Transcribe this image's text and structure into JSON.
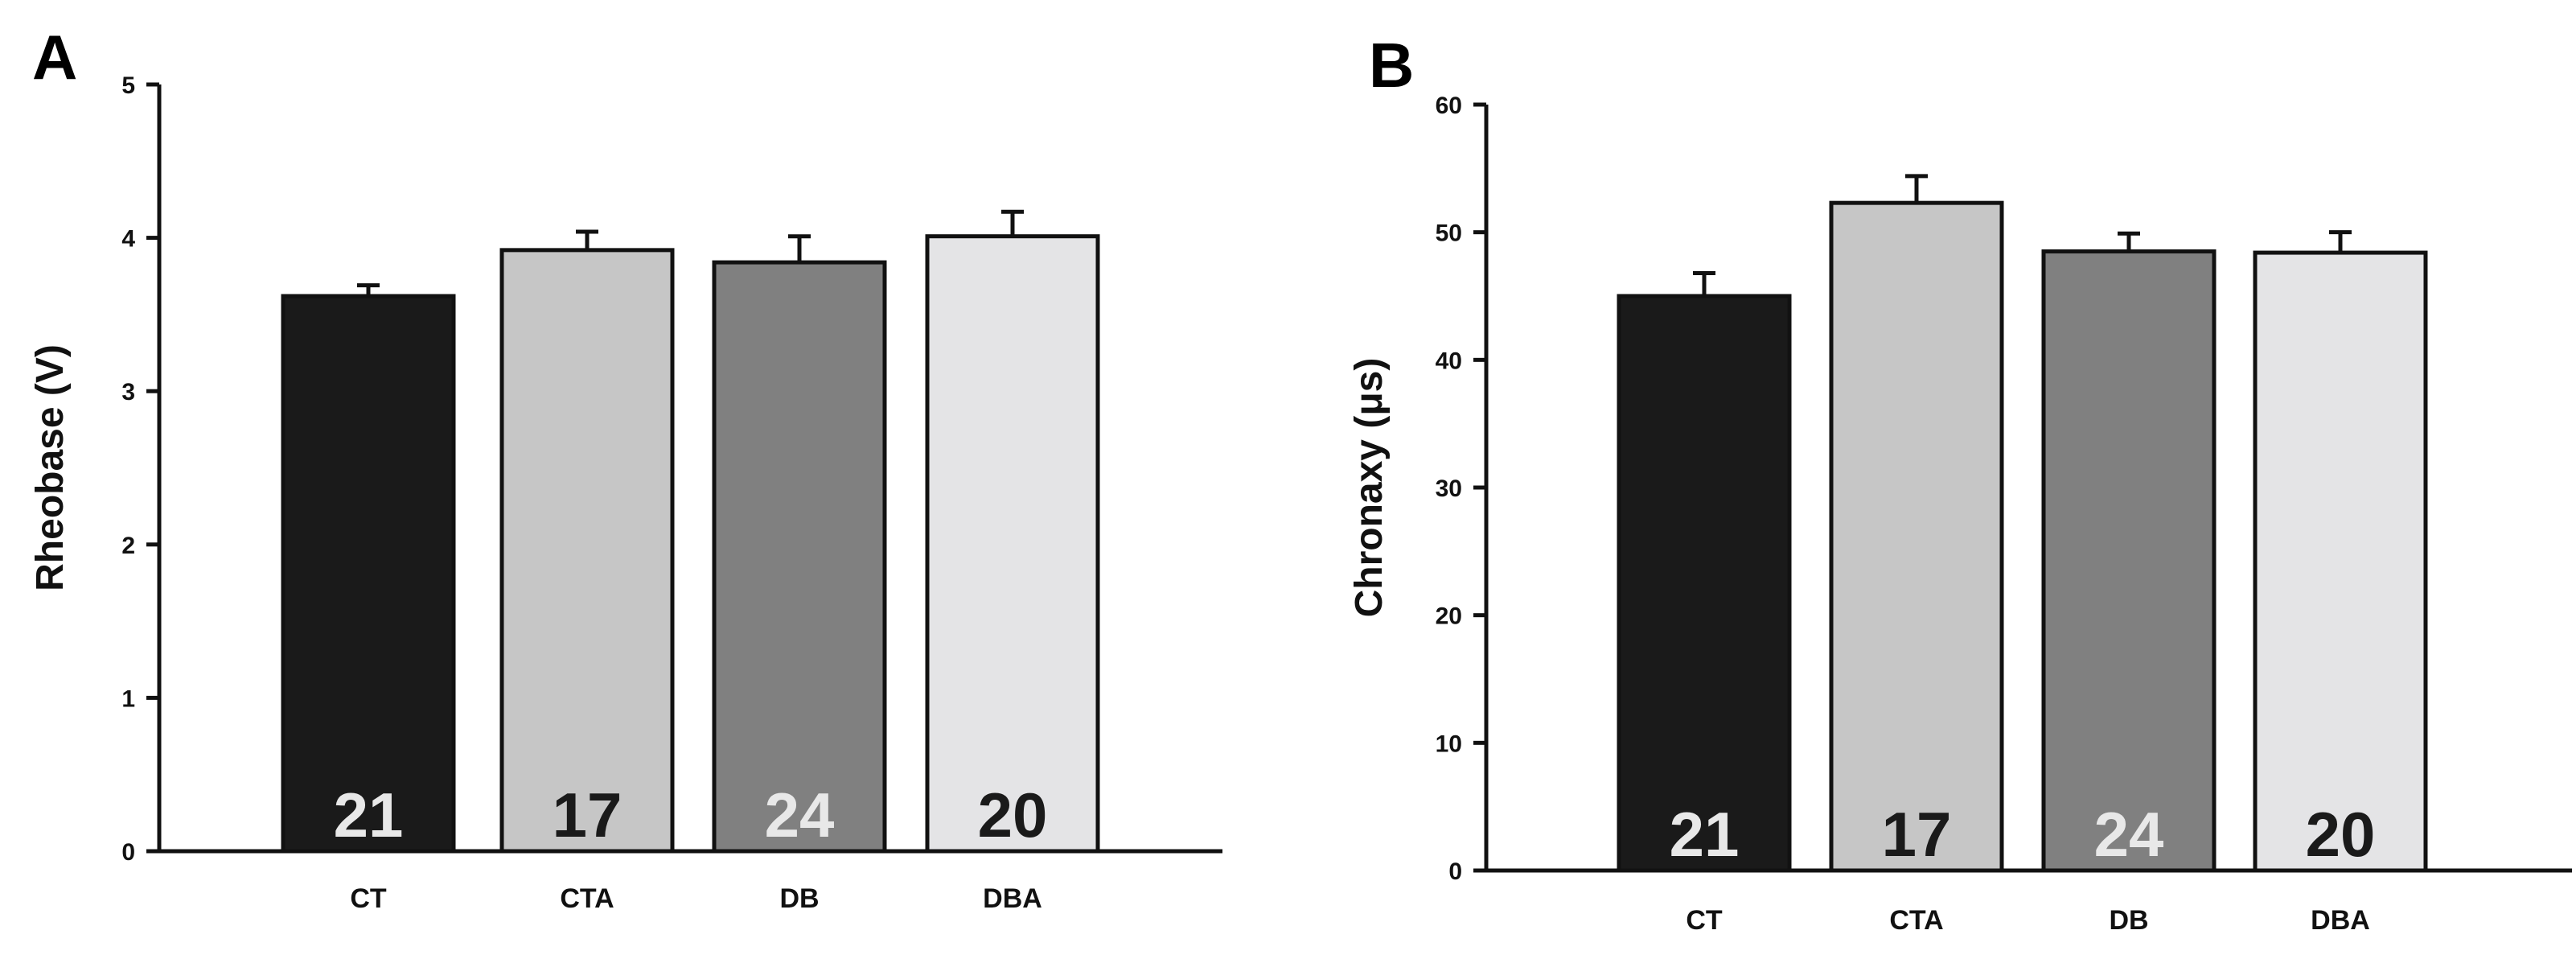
{
  "chart_data": [
    {
      "type": "bar",
      "panel": "A",
      "title": "",
      "xlabel": "",
      "ylabel": "Rheobase (V)",
      "ylim": [
        0,
        5
      ],
      "yticks": [
        0,
        1,
        2,
        3,
        4,
        5
      ],
      "categories": [
        "CT",
        "CTA",
        "DB",
        "DBA"
      ],
      "values": [
        3.62,
        3.92,
        3.84,
        4.01
      ],
      "errors": [
        0.07,
        0.12,
        0.17,
        0.16
      ],
      "n_labels": [
        "21",
        "17",
        "24",
        "20"
      ],
      "colors": [
        "#1a1a1a",
        "#c6c6c6",
        "#808080",
        "#e4e4e6"
      ],
      "n_label_colors": [
        "#e8e8e8",
        "#1a1a1a",
        "#e8e8e8",
        "#1a1a1a"
      ]
    },
    {
      "type": "bar",
      "panel": "B",
      "title": "",
      "xlabel": "",
      "ylabel": "Chronaxy (μs)",
      "ylim": [
        0,
        60
      ],
      "yticks": [
        0,
        10,
        20,
        30,
        40,
        50,
        60
      ],
      "categories": [
        "CT",
        "CTA",
        "DB",
        "DBA"
      ],
      "values": [
        45.0,
        52.3,
        48.5,
        48.4
      ],
      "errors": [
        1.8,
        2.1,
        1.4,
        1.6
      ],
      "n_labels": [
        "21",
        "17",
        "24",
        "20"
      ],
      "colors": [
        "#1a1a1a",
        "#c6c6c6",
        "#808080",
        "#e4e4e6"
      ],
      "n_label_colors": [
        "#e8e8e8",
        "#1a1a1a",
        "#e8e8e8",
        "#1a1a1a"
      ]
    }
  ]
}
